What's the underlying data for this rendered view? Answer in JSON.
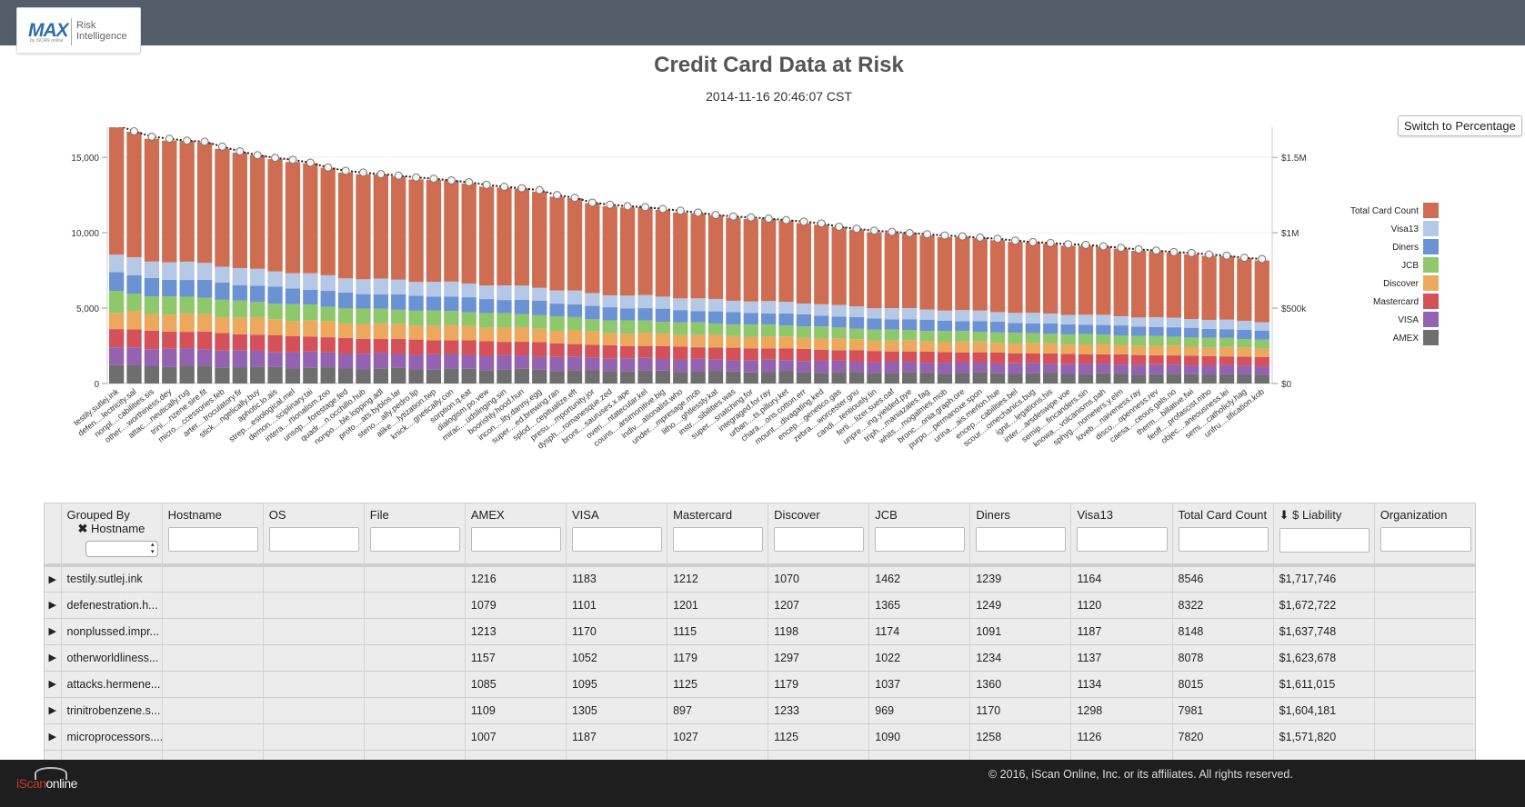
{
  "header": {
    "logo_text": "MAX",
    "logo_small": "by iSCAN online",
    "logo_product": "Risk Intelligence"
  },
  "page": {
    "title": "Credit Card Data at Risk",
    "timestamp": "2014-11-16 20:46:07 CST",
    "switch_button": "Switch to Percentage"
  },
  "colors": {
    "Total Card Count": "#cf6d52",
    "Visa13": "#b5c8e6",
    "Diners": "#6b93d3",
    "JCB": "#8ec86b",
    "Discover": "#eca85c",
    "Mastercard": "#d5515a",
    "VISA": "#9362b1",
    "AMEX": "#6e6e6e",
    "line": "#222222"
  },
  "chart_data": {
    "type": "bar",
    "stacked": true,
    "grid": true,
    "legend_position": "right",
    "y_left": {
      "ticks": [
        "0",
        "5,000",
        "10,000",
        "15,000"
      ],
      "range": [
        0,
        17000
      ]
    },
    "y_right": {
      "ticks": [
        "$0",
        "$500k",
        "$1M",
        "$1.5M"
      ],
      "range": [
        0,
        1700000
      ]
    },
    "line_series": "$ Liability",
    "categories": [
      "testily.sutlej.ink",
      "defen....lectricity.sal",
      "nonpl....cabilities.sis",
      "other....worthiness.dey",
      "attac....neutically.rug",
      "trini....nzene.sire.fit",
      "micro....ccessories.feb",
      "arter....troculatory.fir",
      "stick....ngelically.buy",
      "aphotic.lo.ais",
      "strep....esiological.mel",
      "demon....sciplinary.tai",
      "intera....rtionalism.zoo",
      "unsop....forestage.fed",
      "quadr....n.occhillo.hub",
      "nonpo....ble.lopping.adl",
      "proto....ats.byblos.lar",
      "steno....ally.pedro.lip",
      "alike....lytization.twp",
      "knick....gnetically.con",
      "sorption.q.eat",
      "dialogism.po.vew",
      "mirac....udslinging.sin",
      "boorishly.hood.hun",
      "incon....lity.danny.egg",
      "super....ed.brewing.ran",
      "splod....cepitualize.eft",
      "presu....mportunity.jor",
      "dysph....romanesque.zed",
      "bront....sauruses.x.ape",
      "overi....ntatecular.kel",
      "couns....arsimonitive.big",
      "indiv....ationalist.who",
      "under....mpresage.mob",
      "litho....ghtlessly.kat",
      "instr....sibilities.was",
      "super....snatching.for",
      "integraged.for.ray",
      "urban....ts.pillory.ket",
      "chara....ons.cotton.err",
      "mount....divagating.ked",
      "encep....genetico.gas",
      "zebra....worcester.gnu",
      "candi....tentiously.tin",
      "ferti....lizer.sues.oaf",
      "unpre....ing.yielded.pye",
      "triph....maniazales.fag",
      "whits....mogalmes.mob",
      "bronc....onia.graph.ore",
      "purpo....permanoxe.spon",
      "urina....ais.merlon.hue",
      "encep....cabilities.bel",
      "scour....omechanics.bug",
      "ignit....legations.his",
      "inter....arsdeswipe.voe",
      "semip....fincanders.sin",
      "knowa....volcanisms.pah",
      "sphyg....nometers.y.elm",
      "loveb....naiveness.ray",
      "disco....openness.rev",
      "caesa....ceous.gals.no",
      "therm....billative.fwi",
      "feoff....profascist.mho",
      "objec....aneousness.lei",
      "semi....catholicly.hag",
      "unfru....tification.kob"
    ],
    "total_card_count": [
      8546,
      8322,
      8148,
      8078,
      8015,
      7981,
      7820,
      7660,
      7540,
      7450,
      7380,
      7290,
      7130,
      7020,
      6960,
      6910,
      6860,
      6800,
      6760,
      6700,
      6640,
      6560,
      6490,
      6440,
      6380,
      6220,
      6130,
      5970,
      5900,
      5850,
      5820,
      5760,
      5700,
      5640,
      5560,
      5510,
      5480,
      5440,
      5390,
      5340,
      5280,
      5170,
      5100,
      5040,
      5000,
      4960,
      4920,
      4880,
      4850,
      4810,
      4770,
      4710,
      4660,
      4630,
      4590,
      4570,
      4520,
      4470,
      4420,
      4380,
      4330,
      4300,
      4250,
      4210,
      4140,
      4100
    ],
    "liability": [
      1717746,
      1672722,
      1637748,
      1623678,
      1611015,
      1604181,
      1571820,
      1540000,
      1515000,
      1497000,
      1484000,
      1465000,
      1433000,
      1411000,
      1399000,
      1389000,
      1379000,
      1367000,
      1359000,
      1347000,
      1335000,
      1318000,
      1305000,
      1295000,
      1283000,
      1250000,
      1232000,
      1200000,
      1186000,
      1176000,
      1170000,
      1158000,
      1146000,
      1134000,
      1118000,
      1108000,
      1102000,
      1094000,
      1084000,
      1074000,
      1062000,
      1040000,
      1026000,
      1014000,
      1006000,
      998000,
      990000,
      982000,
      976000,
      968000,
      960000,
      948000,
      938000,
      932000,
      924000,
      920000,
      910000,
      900000,
      890000,
      882000,
      872000,
      866000,
      856000,
      848000,
      834000,
      826000
    ],
    "card_type_order": [
      "AMEX",
      "VISA",
      "Mastercard",
      "Discover",
      "JCB",
      "Diners",
      "Visa13",
      "Total Card Count"
    ],
    "first_row_breakdown": {
      "AMEX": 1216,
      "VISA": 1183,
      "Mastercard": 1212,
      "Discover": 1070,
      "JCB": 1462,
      "Diners": 1239,
      "Visa13": 1164
    }
  },
  "table": {
    "grouped_by_label": "Grouped By",
    "group_chip": "Hostname",
    "columns": [
      "Hostname",
      "OS",
      "File",
      "AMEX",
      "VISA",
      "Mastercard",
      "Discover",
      "JCB",
      "Diners",
      "Visa13",
      "Total Card Count",
      "$ Liability",
      "Organization"
    ],
    "sort_indicator": "⬇",
    "rows": [
      {
        "group": "testily.sutlej.ink",
        "amex": "1216",
        "visa": "1183",
        "mastercard": "1212",
        "discover": "1070",
        "jcb": "1462",
        "diners": "1239",
        "visa13": "1164",
        "total": "8546",
        "liability": "$1,717,746"
      },
      {
        "group": "defenestration.h...",
        "amex": "1079",
        "visa": "1101",
        "mastercard": "1201",
        "discover": "1207",
        "jcb": "1365",
        "diners": "1249",
        "visa13": "1120",
        "total": "8322",
        "liability": "$1,672,722"
      },
      {
        "group": "nonplussed.impr...",
        "amex": "1213",
        "visa": "1170",
        "mastercard": "1115",
        "discover": "1198",
        "jcb": "1174",
        "diners": "1091",
        "visa13": "1187",
        "total": "8148",
        "liability": "$1,637,748"
      },
      {
        "group": "otherworldliness...",
        "amex": "1157",
        "visa": "1052",
        "mastercard": "1179",
        "discover": "1297",
        "jcb": "1022",
        "diners": "1234",
        "visa13": "1137",
        "total": "8078",
        "liability": "$1,623,678"
      },
      {
        "group": "attacks.hermene...",
        "amex": "1085",
        "visa": "1095",
        "mastercard": "1125",
        "discover": "1179",
        "jcb": "1037",
        "diners": "1360",
        "visa13": "1134",
        "total": "8015",
        "liability": "$1,611,015"
      },
      {
        "group": "trinitrobenzene.s...",
        "amex": "1109",
        "visa": "1305",
        "mastercard": "897",
        "discover": "1233",
        "jcb": "969",
        "diners": "1170",
        "visa13": "1298",
        "total": "7981",
        "liability": "$1,604,181"
      },
      {
        "group": "microprocessors....",
        "amex": "1007",
        "visa": "1187",
        "mastercard": "1027",
        "discover": "1125",
        "jcb": "1090",
        "diners": "1258",
        "visa13": "1126",
        "total": "7820",
        "liability": "$1,571,820"
      }
    ]
  },
  "footer": {
    "logo_left": "iScan",
    "logo_right": "online",
    "copyright": "© 2016, iScan Online, Inc. or its affiliates. All rights reserved."
  }
}
